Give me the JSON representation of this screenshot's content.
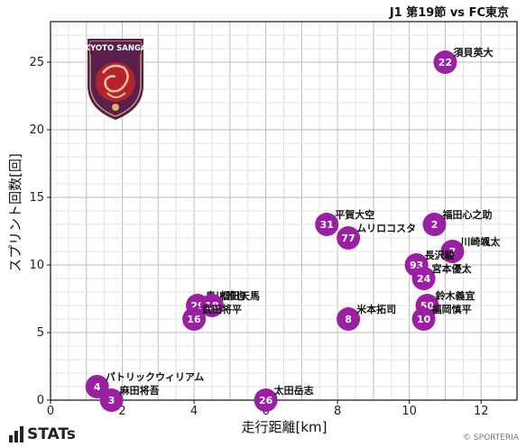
{
  "match_title": "J1 第19節 vs FC東京",
  "team_logo_text": "KYOTO SANGA",
  "footer": {
    "brand": "STATs",
    "credit": "© SPORTERIA"
  },
  "colors": {
    "point": "#9b1fa3",
    "grid_major": "#bdbdbd",
    "grid_minor": "#e3e3e3",
    "text": "#111111"
  },
  "chart_data": {
    "type": "scatter",
    "title": "J1 第19節 vs FC東京",
    "xlabel": "走行距離[km]",
    "ylabel": "スプリント回数[回]",
    "xlim": [
      0,
      13
    ],
    "ylim": [
      0,
      28
    ],
    "xticks": [
      0,
      2,
      4,
      6,
      8,
      10,
      12
    ],
    "yticks": [
      0,
      5,
      10,
      15,
      20,
      25
    ],
    "grid": true,
    "points": [
      {
        "name": "須貝英大",
        "number": "22",
        "x": 11.0,
        "y": 25
      },
      {
        "name": "福田心之助",
        "number": "2",
        "x": 10.7,
        "y": 13
      },
      {
        "name": "平賀大空",
        "number": "31",
        "x": 7.7,
        "y": 13
      },
      {
        "name": "ムリロコスタ",
        "number": "77",
        "x": 8.3,
        "y": 12
      },
      {
        "name": "川崎颯太",
        "number": "7",
        "x": 11.2,
        "y": 11
      },
      {
        "name": "長沢駿",
        "number": "93",
        "x": 10.2,
        "y": 10
      },
      {
        "name": "宮本優太",
        "number": "24",
        "x": 10.4,
        "y": 9
      },
      {
        "name": "鈴木義宜",
        "number": "50",
        "x": 10.5,
        "y": 7
      },
      {
        "name": "福岡慎平",
        "number": "10",
        "x": 10.4,
        "y": 6
      },
      {
        "name": "米本拓司",
        "number": "8",
        "x": 8.3,
        "y": 6
      },
      {
        "name": "奥川雅也",
        "number": "29",
        "x": 4.1,
        "y": 7
      },
      {
        "name": "松田天馬",
        "number": "18",
        "x": 4.5,
        "y": 7
      },
      {
        "name": "武田将平",
        "number": "16",
        "x": 4.0,
        "y": 6
      },
      {
        "name": "パトリックウィリアム",
        "number": "4",
        "x": 1.3,
        "y": 1
      },
      {
        "name": "麻田将吾",
        "number": "3",
        "x": 1.7,
        "y": 0
      },
      {
        "name": "太田岳志",
        "number": "26",
        "x": 6.0,
        "y": 0
      }
    ]
  }
}
